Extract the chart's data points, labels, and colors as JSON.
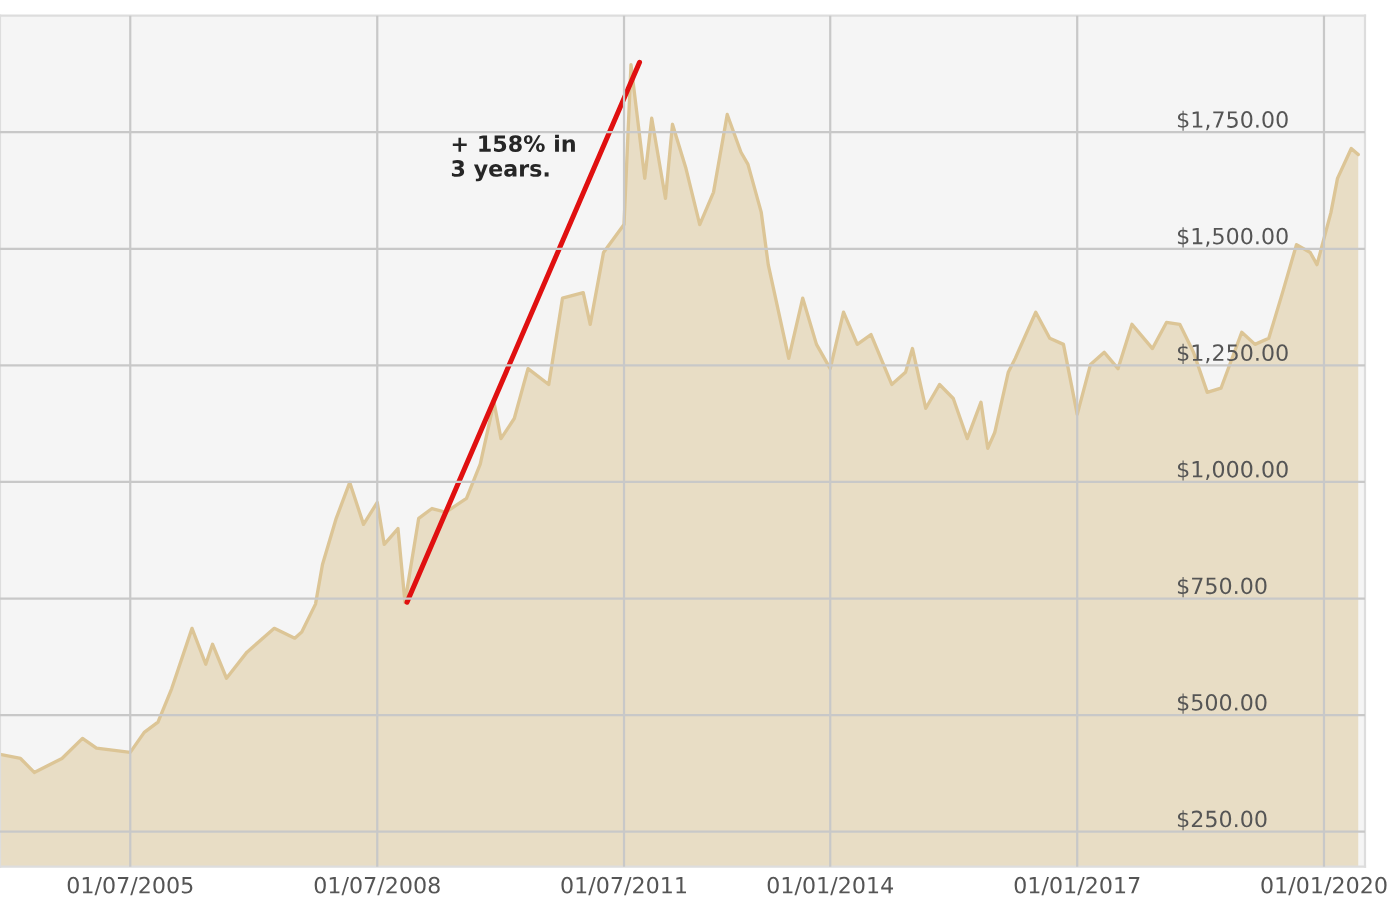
{
  "chart_data": {
    "type": "area",
    "xlim": [
      "2003-12-01",
      "2020-07-01"
    ],
    "xticks": [
      {
        "value": "2005-07-01",
        "label": "01/07/2005"
      },
      {
        "value": "2008-07-01",
        "label": "01/07/2008"
      },
      {
        "value": "2011-07-01",
        "label": "01/07/2011"
      },
      {
        "value": "2014-01-01",
        "label": "01/01/2014"
      },
      {
        "value": "2017-01-01",
        "label": "01/01/2017"
      },
      {
        "value": "2020-01-01",
        "label": "01/01/2020"
      }
    ],
    "ylim": [
      175,
      2000
    ],
    "yticks": [
      {
        "value": 250,
        "label": "$250.00"
      },
      {
        "value": 500,
        "label": "$500.00"
      },
      {
        "value": 750,
        "label": "$750.00"
      },
      {
        "value": 1000,
        "label": "$1,000.00"
      },
      {
        "value": 1250,
        "label": "$1,250.00"
      },
      {
        "value": 1500,
        "label": "$1,500.00"
      },
      {
        "value": 1750,
        "label": "$1,750.00"
      }
    ],
    "grid": true,
    "legend": false,
    "series": [
      {
        "color": "#dcc596",
        "x": [
          "2003-12",
          "2004-03",
          "2004-05",
          "2004-09",
          "2004-12",
          "2005-02",
          "2005-07",
          "2005-09",
          "2005-11",
          "2006-01",
          "2006-04",
          "2006-06",
          "2006-07",
          "2006-09",
          "2006-12",
          "2007-04",
          "2007-07",
          "2007-08",
          "2007-10",
          "2007-11",
          "2008-01",
          "2008-03",
          "2008-05",
          "2008-07",
          "2008-08",
          "2008-10",
          "2008-11",
          "2009-01",
          "2009-03",
          "2009-05",
          "2009-08",
          "2009-10",
          "2009-12",
          "2010-01",
          "2010-03",
          "2010-05",
          "2010-08",
          "2010-10",
          "2011-01",
          "2011-02",
          "2011-04",
          "2011-07",
          "2011-08",
          "2011-10",
          "2011-11",
          "2012-01",
          "2012-02",
          "2012-04",
          "2012-06",
          "2012-08",
          "2012-10",
          "2012-12",
          "2013-01",
          "2013-03",
          "2013-04",
          "2013-07",
          "2013-09",
          "2013-11",
          "2014-01",
          "2014-03",
          "2014-05",
          "2014-07",
          "2014-10",
          "2014-12",
          "2015-01",
          "2015-03",
          "2015-05",
          "2015-07",
          "2015-09",
          "2015-11",
          "2015-12",
          "2016-01",
          "2016-03",
          "2016-04",
          "2016-07",
          "2016-09",
          "2016-11",
          "2017-01",
          "2017-03",
          "2017-05",
          "2017-07",
          "2017-09",
          "2017-12",
          "2018-02",
          "2018-04",
          "2018-06",
          "2018-08",
          "2018-10",
          "2019-01",
          "2019-03",
          "2019-05",
          "2019-07",
          "2019-09",
          "2019-11",
          "2019-12",
          "2020-02",
          "2020-03",
          "2020-05",
          "2020-06"
        ],
        "values": [
          416,
          407,
          377,
          407,
          450,
          429,
          420,
          463,
          485,
          557,
          686,
          609,
          652,
          579,
          635,
          686,
          665,
          678,
          738,
          823,
          922,
          999,
          909,
          956,
          866,
          900,
          742,
          922,
          943,
          935,
          965,
          1038,
          1171,
          1093,
          1136,
          1243,
          1209,
          1394,
          1406,
          1338,
          1492,
          1552,
          1895,
          1651,
          1780,
          1608,
          1767,
          1672,
          1552,
          1621,
          1788,
          1707,
          1681,
          1578,
          1466,
          1265,
          1394,
          1295,
          1243,
          1364,
          1295,
          1316,
          1209,
          1235,
          1286,
          1158,
          1209,
          1179,
          1093,
          1171,
          1072,
          1106,
          1235,
          1265,
          1364,
          1308,
          1295,
          1145,
          1252,
          1278,
          1243,
          1338,
          1286,
          1342,
          1338,
          1278,
          1192,
          1201,
          1321,
          1295,
          1308,
          1406,
          1509,
          1492,
          1466,
          1578,
          1651,
          1715,
          1702
        ]
      },
      {
        "type": "line",
        "color": "#e01010",
        "x": [
          "2008-11-10",
          "2011-09-08"
        ],
        "values": [
          742,
          1900
        ]
      }
    ],
    "annotations": [
      "+ 158% in\n3 years."
    ]
  }
}
